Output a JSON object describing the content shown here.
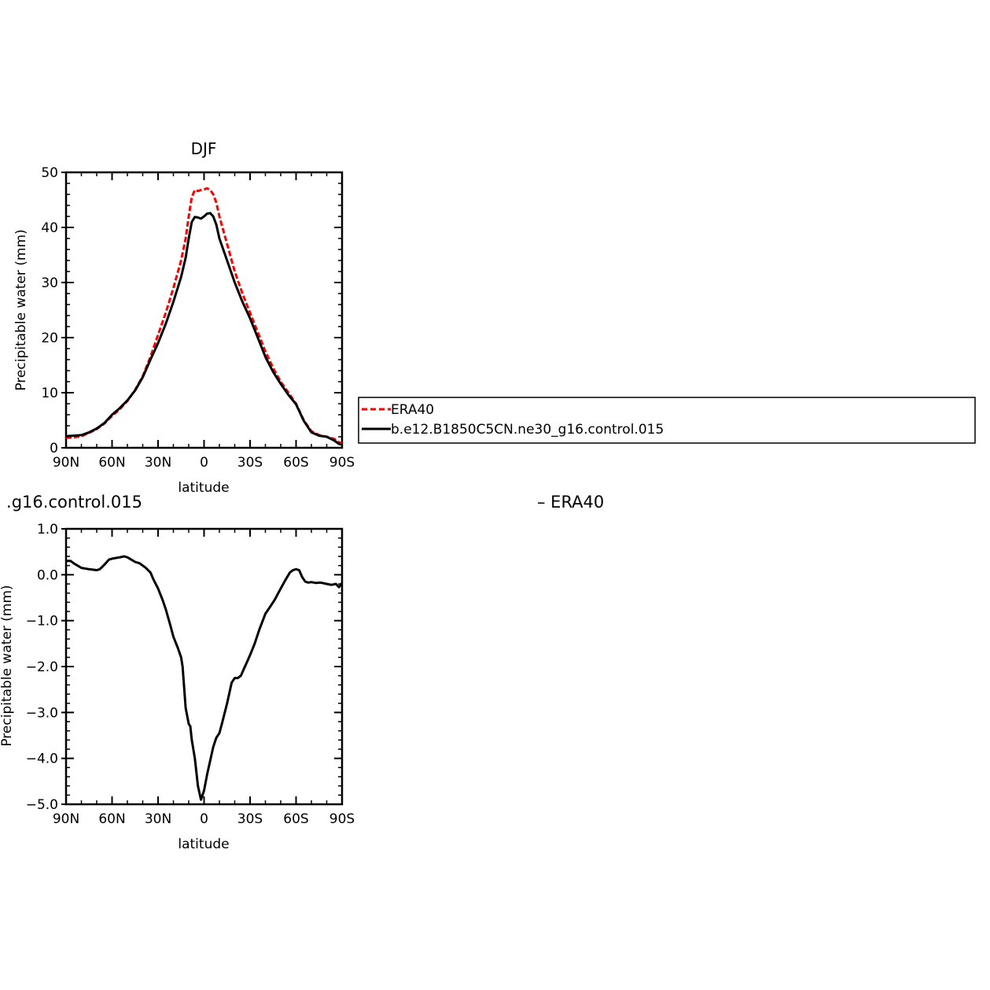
{
  "chart_data": [
    {
      "type": "line",
      "title": "DJF",
      "xlabel": "latitude",
      "ylabel": "Precipitable water (mm)",
      "xlim": [
        90,
        -90
      ],
      "ylim": [
        0,
        50
      ],
      "x_ticks": [
        90,
        60,
        30,
        0,
        -30,
        -60,
        -90
      ],
      "x_tick_labels": [
        "90N",
        "60N",
        "30N",
        "0",
        "30S",
        "60S",
        "90S"
      ],
      "y_ticks": [
        0,
        10,
        20,
        30,
        40,
        50
      ],
      "y_tick_labels": [
        "0",
        "10",
        "20",
        "30",
        "40",
        "50"
      ],
      "legend_position": "right",
      "legend_entries": [
        "ERA40",
        "b.e12.B1850C5CN.ne30_g16.control.015"
      ],
      "series": [
        {
          "name": "ERA40",
          "color": "#ff0000",
          "dash": "dashed",
          "x": [
            90,
            85,
            80,
            75,
            70,
            65,
            60,
            55,
            50,
            45,
            40,
            35,
            30,
            25,
            20,
            15,
            12,
            10,
            8,
            6,
            4,
            2,
            0,
            -2,
            -4,
            -6,
            -8,
            -10,
            -15,
            -20,
            -25,
            -30,
            -35,
            -40,
            -45,
            -50,
            -55,
            -60,
            -65,
            -70,
            -75,
            -80,
            -85,
            -88,
            -90
          ],
          "values": [
            1.8,
            1.9,
            2.1,
            2.7,
            3.4,
            4.4,
            5.8,
            7.0,
            8.5,
            10.5,
            13.0,
            16.5,
            20.5,
            24.5,
            29.0,
            34.0,
            38.0,
            42.0,
            45.5,
            46.8,
            46.6,
            46.8,
            46.9,
            47.1,
            46.8,
            46.0,
            44.5,
            42.0,
            37.0,
            32.0,
            28.0,
            24.5,
            21.0,
            17.5,
            14.5,
            12.0,
            10.0,
            8.0,
            5.0,
            3.0,
            2.3,
            2.0,
            1.6,
            1.0,
            0.8
          ]
        },
        {
          "name": "b.e12.B1850C5CN.ne30_g16.control.015",
          "color": "#000000",
          "dash": "solid",
          "x": [
            90,
            85,
            80,
            75,
            70,
            65,
            60,
            55,
            50,
            45,
            40,
            35,
            30,
            25,
            20,
            15,
            12,
            10,
            8,
            6,
            4,
            2,
            0,
            -2,
            -4,
            -6,
            -8,
            -10,
            -15,
            -20,
            -25,
            -30,
            -35,
            -40,
            -45,
            -50,
            -55,
            -60,
            -65,
            -70,
            -75,
            -80,
            -85,
            -88,
            -90
          ],
          "values": [
            2.1,
            2.2,
            2.3,
            2.8,
            3.5,
            4.5,
            6.0,
            7.2,
            8.6,
            10.4,
            12.8,
            16.0,
            19.0,
            22.5,
            26.5,
            31.0,
            34.5,
            38.0,
            41.0,
            41.9,
            41.8,
            41.6,
            42.0,
            42.5,
            42.6,
            42.0,
            40.5,
            38.0,
            34.0,
            30.0,
            26.5,
            23.5,
            20.0,
            16.5,
            13.8,
            11.6,
            9.6,
            7.9,
            4.9,
            2.8,
            2.2,
            2.0,
            1.3,
            0.7,
            0.6
          ]
        }
      ]
    },
    {
      "type": "line",
      "title": ".g16.control.015",
      "title_right": "– ERA40",
      "xlabel": "latitude",
      "ylabel": "Precipitable water (mm)",
      "xlim": [
        90,
        -90
      ],
      "ylim": [
        -5,
        1
      ],
      "x_ticks": [
        90,
        60,
        30,
        0,
        -30,
        -60,
        -90
      ],
      "x_tick_labels": [
        "90N",
        "60N",
        "30N",
        "0",
        "30S",
        "60S",
        "90S"
      ],
      "y_ticks": [
        1,
        0,
        -1,
        -2,
        -3,
        -4,
        -5
      ],
      "y_tick_labels": [
        "1.0",
        "0.0",
        "−1.0",
        "−2.0",
        "−3.0",
        "−4.0",
        "−5.0"
      ],
      "series": [
        {
          "color": "#000000",
          "dash": "solid",
          "x": [
            90,
            87,
            85,
            80,
            75,
            70,
            68,
            65,
            62,
            60,
            55,
            52,
            50,
            45,
            42,
            40,
            38,
            35,
            33,
            30,
            27,
            25,
            22,
            20,
            17,
            15,
            14,
            12,
            10,
            9,
            8,
            6,
            4,
            2,
            0,
            -2,
            -4,
            -6,
            -8,
            -10,
            -12,
            -15,
            -18,
            -20,
            -22,
            -24,
            -26,
            -28,
            -30,
            -33,
            -36,
            -40,
            -43,
            -46,
            -50,
            -53,
            -56,
            -58,
            -60,
            -62,
            -64,
            -66,
            -68,
            -70,
            -73,
            -76,
            -80,
            -83,
            -86,
            -88,
            -90
          ],
          "values": [
            0.3,
            0.3,
            0.25,
            0.15,
            0.12,
            0.1,
            0.12,
            0.22,
            0.33,
            0.35,
            0.38,
            0.4,
            0.38,
            0.28,
            0.25,
            0.2,
            0.15,
            0.05,
            -0.1,
            -0.3,
            -0.55,
            -0.75,
            -1.1,
            -1.35,
            -1.6,
            -1.8,
            -2.0,
            -2.9,
            -3.25,
            -3.3,
            -3.6,
            -4.0,
            -4.6,
            -4.9,
            -4.7,
            -4.35,
            -4.05,
            -3.75,
            -3.55,
            -3.45,
            -3.2,
            -2.8,
            -2.35,
            -2.25,
            -2.25,
            -2.2,
            -2.05,
            -1.9,
            -1.75,
            -1.5,
            -1.2,
            -0.85,
            -0.7,
            -0.55,
            -0.3,
            -0.12,
            0.05,
            0.1,
            0.12,
            0.1,
            -0.05,
            -0.15,
            -0.17,
            -0.16,
            -0.18,
            -0.17,
            -0.2,
            -0.22,
            -0.2,
            -0.27,
            -0.18
          ]
        }
      ]
    }
  ]
}
